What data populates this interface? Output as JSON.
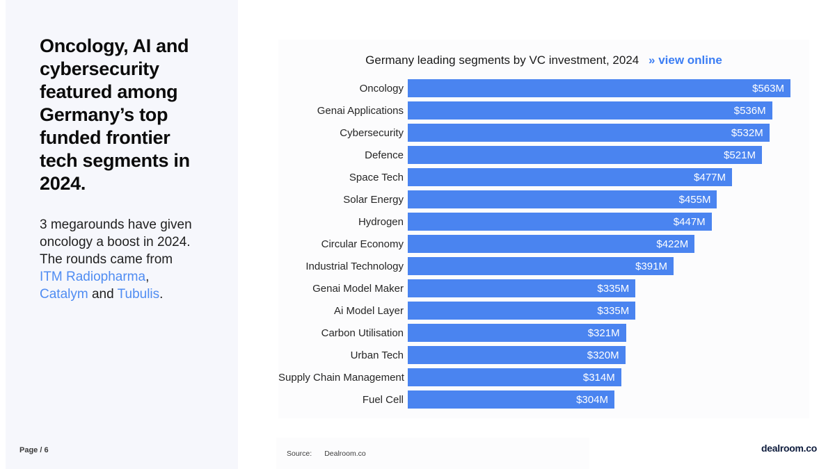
{
  "sidebar": {
    "headline": "Oncology, AI and cybersecurity featured among Germany’s top funded frontier tech segments in 2024.",
    "body": {
      "t1": "3 megarounds have given oncology a boost in 2024. The rounds came from ",
      "link1": "ITM Radiopharma",
      "t2": ", ",
      "link2": "Catalym",
      "t3": " and ",
      "link3": "Tubulis",
      "t4": "."
    },
    "page_label": "Page / 6"
  },
  "chart_data": {
    "type": "bar",
    "orientation": "horizontal",
    "title": "Germany leading segments by VC investment, 2024",
    "link_prefix": "»",
    "link_text": "view online",
    "categories": [
      "Oncology",
      "Genai Applications",
      "Cybersecurity",
      "Defence",
      "Space Tech",
      "Solar Energy",
      "Hydrogen",
      "Circular Economy",
      "Industrial Technology",
      "Genai Model Maker",
      "Ai Model Layer",
      "Carbon Utilisation",
      "Urban Tech",
      "Supply Chain Management",
      "Fuel Cell"
    ],
    "values": [
      563,
      536,
      532,
      521,
      477,
      455,
      447,
      422,
      391,
      335,
      335,
      321,
      320,
      314,
      304
    ],
    "value_labels": [
      "$563M",
      "$536M",
      "$532M",
      "$521M",
      "$477M",
      "$455M",
      "$447M",
      "$422M",
      "$391M",
      "$335M",
      "$335M",
      "$321M",
      "$320M",
      "$314M",
      "$304M"
    ],
    "unit": "$M",
    "xlim": [
      0,
      563
    ],
    "grid": false,
    "legend": false,
    "value_label_position": "inside-right",
    "bar_color": "#4a84f0",
    "link_color": "#3c7ef4"
  },
  "footer": {
    "source_label": "Source:",
    "source_value": "Dealroom.co",
    "logo": "dealroom.co"
  },
  "colors": {
    "accent_blue": "#4a84f0",
    "link_blue": "#4f8cf2",
    "left_panel_bg": "#f6f7fc",
    "logo_navy": "#0e1c3d"
  }
}
